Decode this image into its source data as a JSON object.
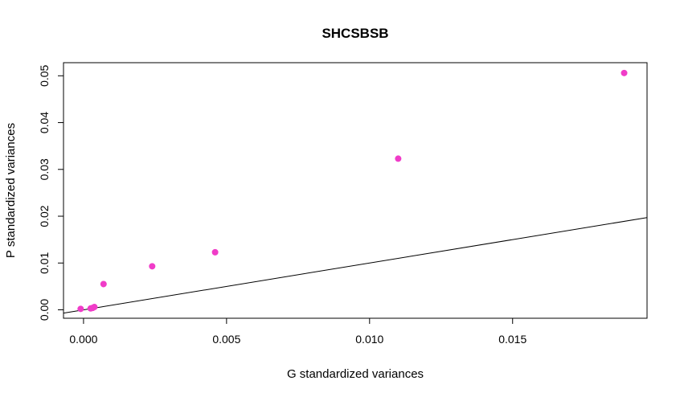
{
  "chart_data": {
    "type": "scatter",
    "title": "SHCSBSB",
    "xlabel": "G standardized variances",
    "ylabel": "P standardized variances",
    "xlim": [
      -0.0007,
      0.0197
    ],
    "ylim": [
      -0.0018,
      0.0528
    ],
    "x_ticks": [
      0.0,
      0.005,
      0.01,
      0.015
    ],
    "x_tick_labels": [
      "0.000",
      "0.005",
      "0.010",
      "0.015"
    ],
    "y_ticks": [
      0.0,
      0.01,
      0.02,
      0.03,
      0.04,
      0.05
    ],
    "y_tick_labels": [
      "0.00",
      "0.01",
      "0.02",
      "0.03",
      "0.04",
      "0.05"
    ],
    "points": [
      {
        "x": -0.0001,
        "y": 0.0002
      },
      {
        "x": 0.00025,
        "y": 0.0003
      },
      {
        "x": 0.00032,
        "y": 0.0004
      },
      {
        "x": 0.00038,
        "y": 0.0006
      },
      {
        "x": 0.0007,
        "y": 0.0055
      },
      {
        "x": 0.0024,
        "y": 0.0093
      },
      {
        "x": 0.0046,
        "y": 0.0123
      },
      {
        "x": 0.011,
        "y": 0.0323
      },
      {
        "x": 0.0189,
        "y": 0.0506
      }
    ],
    "reference_line": {
      "intercept": 0,
      "slope": 1
    },
    "point_color": "#f03cc8",
    "line_color": "#000000",
    "grid": false,
    "legend": false
  }
}
